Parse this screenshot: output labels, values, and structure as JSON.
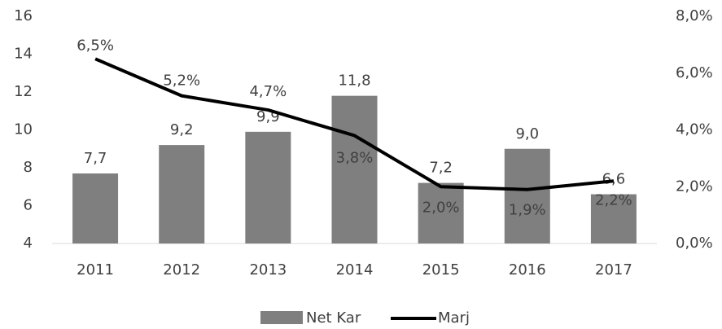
{
  "chart_data": {
    "type": "bar_line",
    "categories": [
      "2011",
      "2012",
      "2013",
      "2014",
      "2015",
      "2016",
      "2017"
    ],
    "series": [
      {
        "name": "Net Kar",
        "color": "#7f7f7f",
        "values": [
          7.7,
          9.2,
          9.9,
          11.8,
          7.2,
          9.0,
          6.6
        ],
        "value_labels": [
          "7,7",
          "9,2",
          "9,9",
          "11,8",
          "7,2",
          "9,0",
          "6,6"
        ]
      },
      {
        "name": "Marj",
        "color": "#000000",
        "axis": "y2",
        "values": [
          6.5,
          5.2,
          4.7,
          3.8,
          2.0,
          1.9,
          2.2
        ],
        "value_labels": [
          "6,5%",
          "5,2%",
          "4,7%",
          "3,8%",
          "2,0%",
          "1,9%",
          "2,2%"
        ]
      }
    ],
    "ylim": [
      4,
      16
    ],
    "yticks": [
      4,
      6,
      8,
      10,
      12,
      14,
      16
    ],
    "y2lim": [
      0,
      8
    ],
    "y2ticks": [
      {
        "value": 0,
        "label": "0,0%"
      },
      {
        "value": 2,
        "label": "2,0%"
      },
      {
        "value": 4,
        "label": "4,0%"
      },
      {
        "value": 6,
        "label": "6,0%"
      },
      {
        "value": 8,
        "label": "8,0%"
      }
    ],
    "legend": "bottom"
  }
}
